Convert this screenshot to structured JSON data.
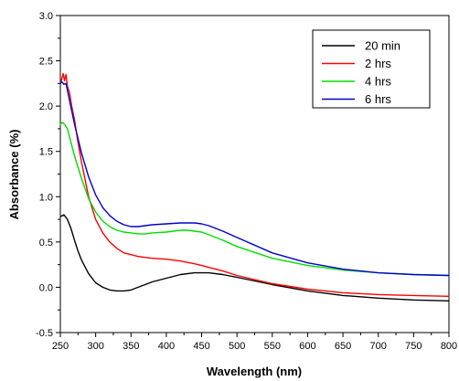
{
  "chart_data": {
    "type": "line",
    "title": "",
    "xlabel": "Wavelength (nm)",
    "ylabel": "Absorbance (%)",
    "xlim": [
      250,
      800
    ],
    "ylim": [
      -0.5,
      3.0
    ],
    "x_ticks": [
      250,
      300,
      350,
      400,
      450,
      500,
      550,
      600,
      650,
      700,
      750,
      800
    ],
    "y_ticks": [
      -0.5,
      0.0,
      0.5,
      1.0,
      1.5,
      2.0,
      2.5,
      3.0
    ],
    "x_tick_labels": [
      "250",
      "300",
      "350",
      "400",
      "450",
      "500",
      "550",
      "600",
      "650",
      "700",
      "750",
      "800"
    ],
    "y_tick_labels": [
      "-0.5",
      "0.0",
      "0.5",
      "1.0",
      "1.5",
      "2.0",
      "2.5",
      "3.0"
    ],
    "grid": false,
    "legend_position": "top-right",
    "series": [
      {
        "name": "20 min",
        "color": "#000000",
        "x": [
          250,
          255,
          260,
          265,
          270,
          275,
          280,
          290,
          300,
          310,
          320,
          330,
          340,
          350,
          360,
          370,
          380,
          400,
          420,
          440,
          450,
          460,
          480,
          500,
          550,
          600,
          650,
          700,
          750,
          800
        ],
        "y": [
          0.78,
          0.8,
          0.75,
          0.65,
          0.52,
          0.4,
          0.3,
          0.15,
          0.05,
          0.0,
          -0.03,
          -0.04,
          -0.04,
          -0.03,
          0.0,
          0.03,
          0.06,
          0.1,
          0.14,
          0.16,
          0.16,
          0.16,
          0.14,
          0.11,
          0.03,
          -0.04,
          -0.09,
          -0.12,
          -0.14,
          -0.15
        ]
      },
      {
        "name": "2 hrs",
        "color": "#ff0000",
        "x": [
          250,
          252,
          254,
          256,
          258,
          260,
          263,
          266,
          270,
          275,
          280,
          290,
          300,
          310,
          320,
          330,
          340,
          350,
          360,
          380,
          400,
          420,
          440,
          450,
          460,
          480,
          500,
          550,
          600,
          650,
          700,
          750,
          800
        ],
        "y": [
          2.25,
          2.3,
          2.36,
          2.28,
          2.35,
          2.22,
          2.15,
          2.0,
          1.85,
          1.6,
          1.38,
          1.0,
          0.75,
          0.6,
          0.5,
          0.43,
          0.38,
          0.36,
          0.34,
          0.32,
          0.31,
          0.29,
          0.26,
          0.24,
          0.22,
          0.18,
          0.13,
          0.04,
          -0.02,
          -0.06,
          -0.08,
          -0.09,
          -0.1
        ]
      },
      {
        "name": "4 hrs",
        "color": "#00dd00",
        "x": [
          250,
          253,
          256,
          260,
          265,
          270,
          280,
          290,
          300,
          310,
          320,
          330,
          340,
          350,
          360,
          370,
          380,
          400,
          420,
          430,
          440,
          450,
          460,
          480,
          500,
          550,
          600,
          650,
          700,
          750,
          800
        ],
        "y": [
          1.8,
          1.82,
          1.8,
          1.75,
          1.6,
          1.45,
          1.2,
          0.98,
          0.83,
          0.73,
          0.67,
          0.63,
          0.61,
          0.6,
          0.59,
          0.59,
          0.6,
          0.61,
          0.63,
          0.63,
          0.62,
          0.61,
          0.58,
          0.52,
          0.45,
          0.32,
          0.24,
          0.19,
          0.16,
          0.14,
          0.13
        ]
      },
      {
        "name": "6 hrs",
        "color": "#0000cc",
        "x": [
          250,
          252,
          255,
          258,
          262,
          266,
          270,
          280,
          290,
          300,
          310,
          320,
          330,
          340,
          350,
          360,
          370,
          380,
          400,
          420,
          430,
          440,
          450,
          460,
          480,
          500,
          550,
          600,
          650,
          700,
          750,
          800
        ],
        "y": [
          2.25,
          2.27,
          2.24,
          2.25,
          2.1,
          1.95,
          1.8,
          1.48,
          1.22,
          1.02,
          0.88,
          0.79,
          0.73,
          0.69,
          0.67,
          0.67,
          0.68,
          0.69,
          0.7,
          0.71,
          0.71,
          0.71,
          0.7,
          0.68,
          0.62,
          0.55,
          0.38,
          0.27,
          0.2,
          0.16,
          0.14,
          0.13
        ]
      }
    ]
  }
}
